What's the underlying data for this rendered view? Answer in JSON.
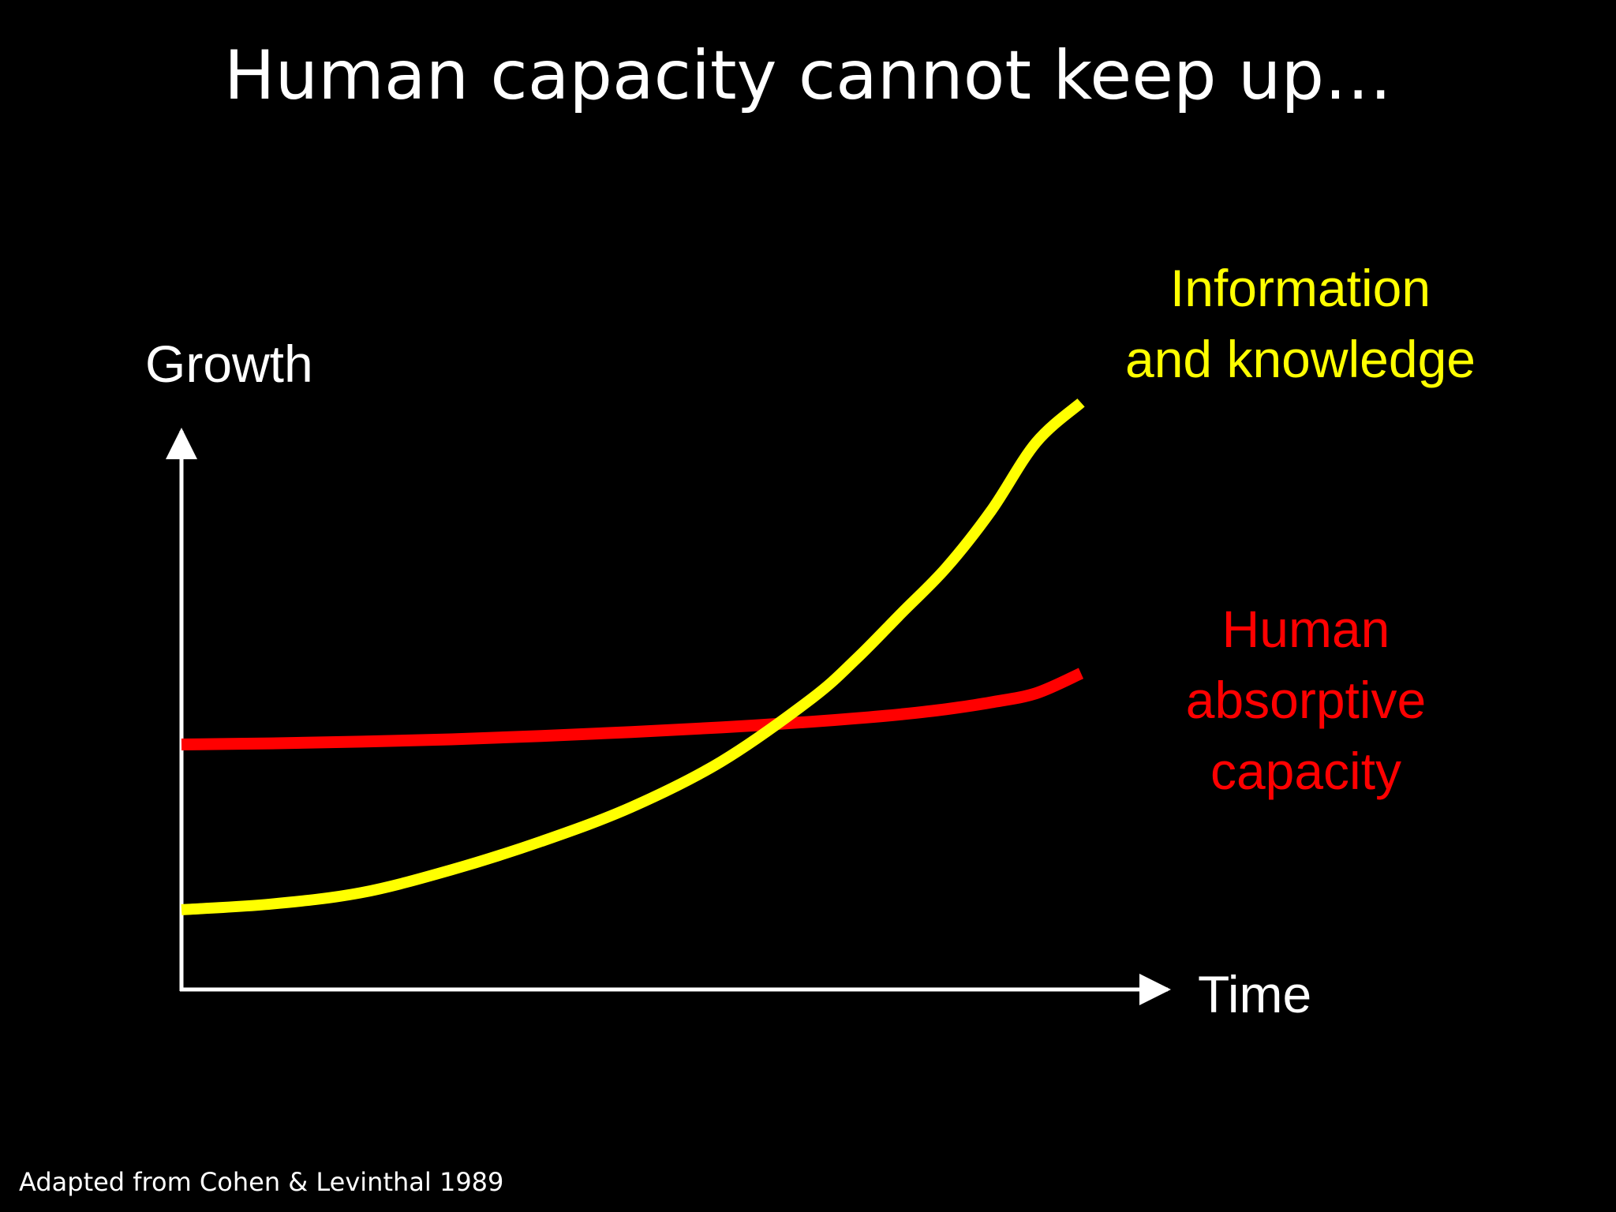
{
  "title": "Human capacity cannot keep up…",
  "source": "Adapted from Cohen & Levinthal 1989",
  "colors": {
    "background": "#000000",
    "axis": "#ffffff",
    "information_series": "#ffff00",
    "human_series": "#ff0000"
  },
  "chart_data": {
    "type": "line",
    "title": "Human capacity cannot keep up…",
    "xlabel": "Time",
    "ylabel": "Growth",
    "ticks": "none",
    "grid": false,
    "legend": "direct labels beside the line ends",
    "xlim": [
      0,
      100
    ],
    "ylim": [
      0,
      100
    ],
    "series": [
      {
        "name": "Information and knowledge",
        "label_lines": [
          "Information",
          "and knowledge"
        ],
        "color": "#ffff00",
        "x": [
          0,
          10,
          20,
          30,
          40,
          50,
          60,
          70,
          75,
          80,
          85,
          90,
          95,
          100
        ],
        "y": [
          14,
          15,
          17,
          21,
          26,
          32,
          40,
          51,
          58,
          66,
          74,
          84,
          96,
          103
        ]
      },
      {
        "name": "Human absorptive capacity",
        "label_lines": [
          "Human",
          "absorptive",
          "capacity"
        ],
        "color": "#ff0000",
        "x": [
          0,
          10,
          20,
          30,
          40,
          50,
          60,
          70,
          75,
          80,
          85,
          90,
          95,
          100
        ],
        "y": [
          43,
          43.2,
          43.5,
          43.9,
          44.5,
          45.2,
          46.0,
          47.0,
          47.6,
          48.3,
          49.2,
          50.4,
          52.0,
          55.5
        ]
      }
    ]
  }
}
